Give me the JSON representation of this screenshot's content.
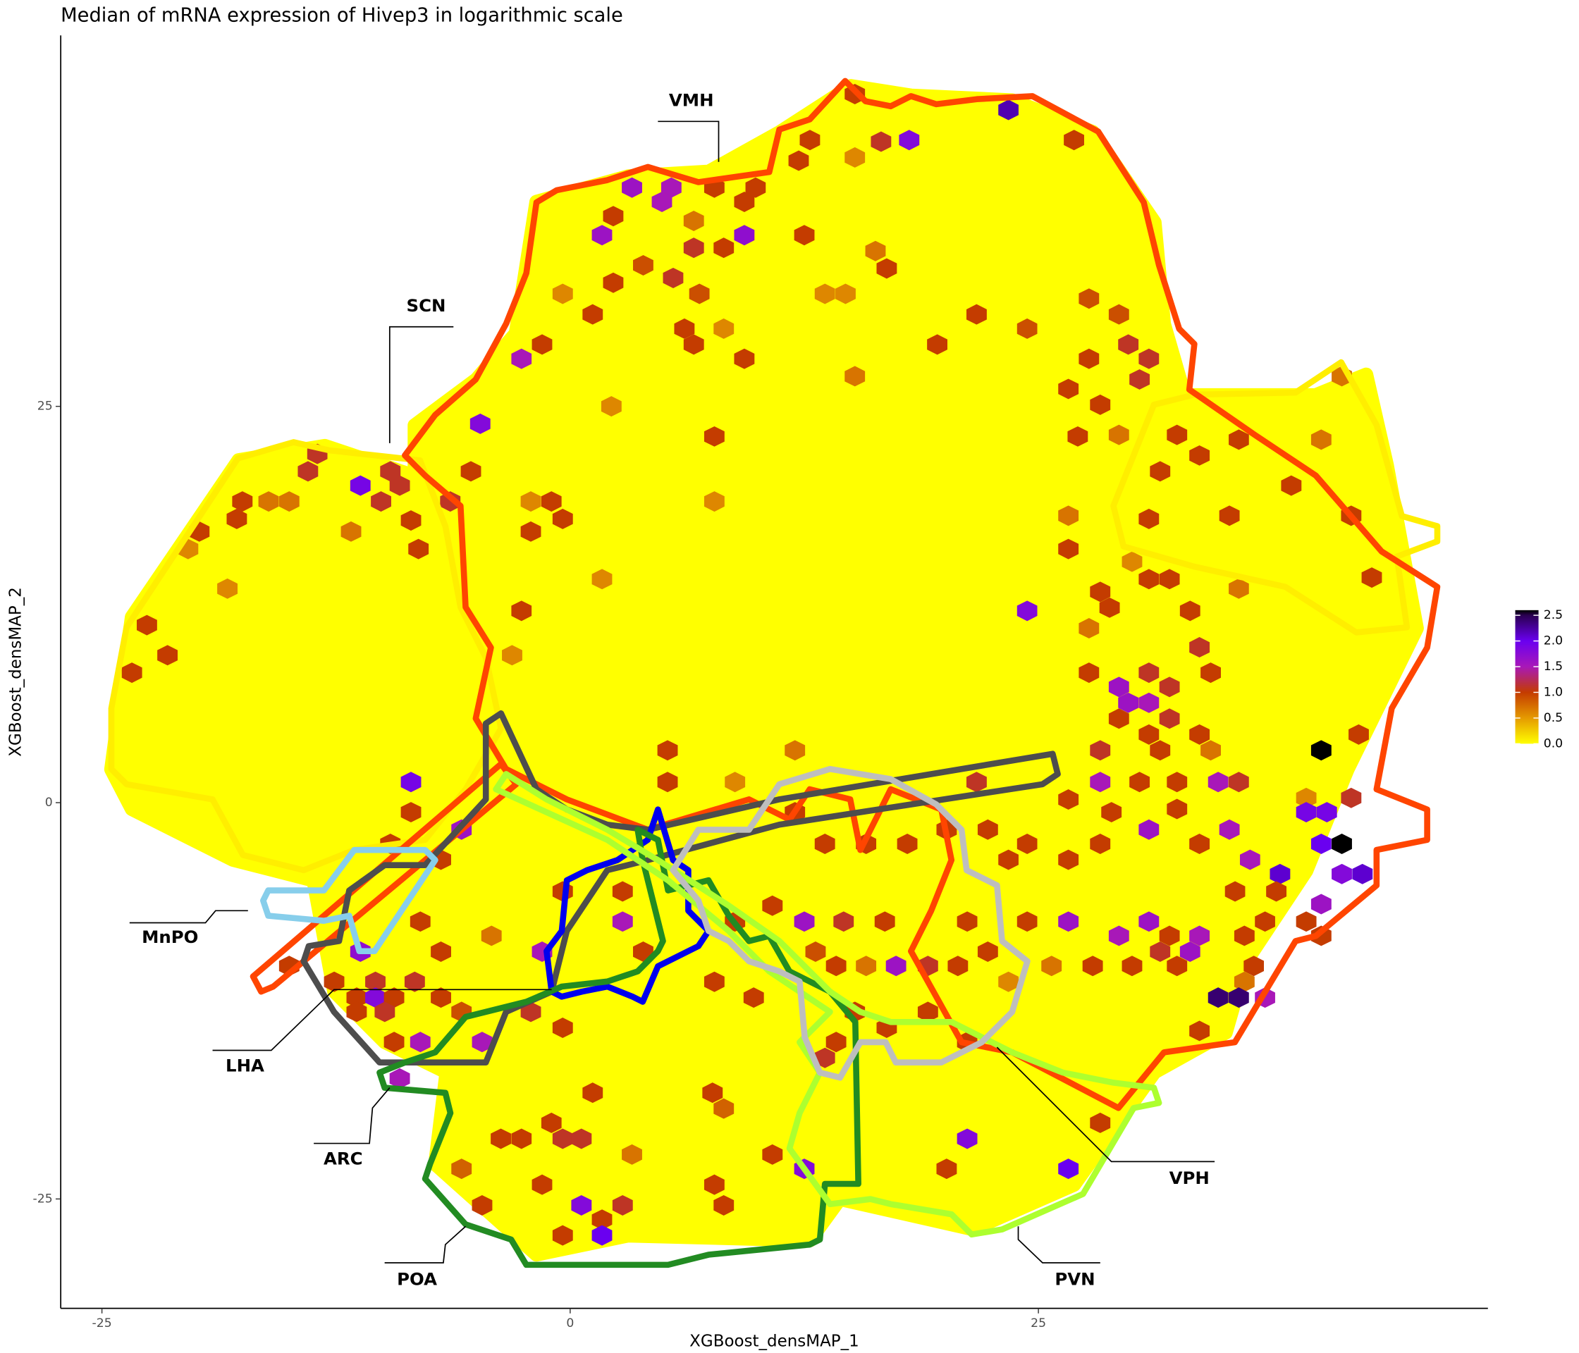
{
  "chart_data": {
    "type": "hexbin",
    "title": "Median of mRNA expression of Hivep3 in logarithmic scale",
    "x_label": "XGBoost_densMAP_1",
    "y_label": "XGBoost_densMAP_2",
    "xlim": [
      -27.2,
      49.0
    ],
    "xticks": [
      -25,
      0,
      25
    ],
    "ylim": [
      -31.9,
      48.4
    ],
    "yticks": [
      -25,
      0,
      25
    ],
    "clim": [
      0,
      2.6
    ],
    "colorbar_ticks": [
      {
        "value": 0,
        "label": "0.0"
      },
      0.5,
      {
        "value": 1,
        "label": "1.0"
      },
      1.5,
      {
        "value": 2,
        "label": "2.0"
      },
      2.5
    ],
    "colorscale": [
      [
        0,
        "#ffff00"
      ],
      [
        0.5,
        "#e59a00"
      ],
      [
        1.0,
        "#c43c00"
      ],
      [
        1.5,
        "#a818b8"
      ],
      [
        2.0,
        "#6a00f0"
      ],
      [
        2.5,
        "#2a0050"
      ],
      [
        2.6,
        "#000000"
      ]
    ],
    "region_labels": [
      "VMH",
      "SCN",
      "MnPO",
      "LHA",
      "ARC",
      "POA",
      "PVN",
      "VPH"
    ],
    "hull": {
      "x": [
        -24.5,
        -23.4,
        -17.7,
        -13.1,
        -8.3,
        -8.3,
        -5.0,
        -2.9,
        -1.8,
        3.1,
        7.4,
        11.2,
        15.0,
        18.2,
        23.6,
        27.9,
        31.2,
        31.7,
        32.8,
        39.8,
        42.5,
        43.6,
        45.2,
        41.5,
        39.3,
        36.1,
        35.0,
        31.2,
        26.9,
        21.5,
        14.4,
        12.8,
        3.1,
        -1.8,
        -7.2,
        -6.6,
        -9.9,
        -12.6,
        -13.7,
        -18.0,
        -23.4
      ],
      "y": [
        2.1,
        11.7,
        21.6,
        22.5,
        20.6,
        23.8,
        26.7,
        29.6,
        37.9,
        39.5,
        39.8,
        42.3,
        45.2,
        44.6,
        44.3,
        42.3,
        36.6,
        30.2,
        25.7,
        25.7,
        27.0,
        21.3,
        11.0,
        2.1,
        -4.3,
        -10.0,
        -14.5,
        -17.0,
        -24.1,
        -26.9,
        -25.0,
        -27.6,
        -27.3,
        -28.5,
        -22.8,
        -17.0,
        -15.1,
        -11.9,
        -4.9,
        -3.6,
        -0.4
      ]
    },
    "hexbins": [
      [
        15.2,
        44.7,
        1.0
      ],
      [
        23.4,
        43.7,
        2.2
      ],
      [
        12.8,
        41.8,
        1.0
      ],
      [
        16.6,
        41.7,
        1.1
      ],
      [
        18.1,
        41.8,
        1.8
      ],
      [
        26.9,
        41.8,
        1.0
      ],
      [
        12.2,
        40.5,
        1.0
      ],
      [
        15.2,
        40.7,
        0.6
      ],
      [
        3.3,
        38.8,
        1.6
      ],
      [
        5.4,
        38.8,
        1.5
      ],
      [
        7.7,
        38.8,
        1.0
      ],
      [
        9.9,
        38.8,
        1.0
      ],
      [
        4.9,
        37.9,
        1.5
      ],
      [
        2.3,
        37.0,
        1.0
      ],
      [
        9.3,
        37.9,
        1.0
      ],
      [
        1.7,
        35.8,
        1.6
      ],
      [
        6.6,
        36.7,
        0.7
      ],
      [
        6.6,
        35.0,
        1.1
      ],
      [
        8.2,
        35.0,
        1.0
      ],
      [
        9.3,
        35.8,
        1.7
      ],
      [
        12.5,
        35.8,
        1.0
      ],
      [
        3.9,
        33.9,
        0.9
      ],
      [
        5.5,
        33.1,
        1.1
      ],
      [
        6.9,
        32.1,
        0.9
      ],
      [
        2.3,
        32.8,
        1.0
      ],
      [
        -0.4,
        32.1,
        0.6
      ],
      [
        16.3,
        34.8,
        0.7
      ],
      [
        16.9,
        33.7,
        1.0
      ],
      [
        13.6,
        32.1,
        0.6
      ],
      [
        14.7,
        32.1,
        0.6
      ],
      [
        21.7,
        30.8,
        1.0
      ],
      [
        6.1,
        29.9,
        1.0
      ],
      [
        8.2,
        29.9,
        0.6
      ],
      [
        6.6,
        28.9,
        1.0
      ],
      [
        1.2,
        30.8,
        1.0
      ],
      [
        -1.5,
        28.9,
        1.0
      ],
      [
        -2.6,
        28.0,
        1.5
      ],
      [
        9.3,
        28.0,
        1.0
      ],
      [
        19.6,
        28.9,
        1.0
      ],
      [
        15.2,
        26.9,
        0.7
      ],
      [
        24.4,
        29.9,
        0.9
      ],
      [
        27.7,
        31.8,
        0.9
      ],
      [
        29.3,
        30.8,
        0.9
      ],
      [
        29.8,
        28.9,
        1.1
      ],
      [
        30.9,
        28.0,
        1.1
      ],
      [
        30.4,
        26.7,
        1.1
      ],
      [
        27.7,
        28.0,
        1.0
      ],
      [
        26.6,
        26.1,
        1.0
      ],
      [
        28.3,
        25.1,
        1.0
      ],
      [
        41.2,
        26.9,
        0.7
      ],
      [
        -4.8,
        23.9,
        1.8
      ],
      [
        2.2,
        25.0,
        0.6
      ],
      [
        7.7,
        23.1,
        1.0
      ],
      [
        27.1,
        23.1,
        1.0
      ],
      [
        29.3,
        23.2,
        0.7
      ],
      [
        32.4,
        23.2,
        1.0
      ],
      [
        35.7,
        22.9,
        1.0
      ],
      [
        40.1,
        22.9,
        0.7
      ],
      [
        31.5,
        20.9,
        1.0
      ],
      [
        33.6,
        21.9,
        1.0
      ],
      [
        7.7,
        19.0,
        0.6
      ],
      [
        -2.1,
        19.0,
        0.6
      ],
      [
        -1.0,
        19.0,
        1.0
      ],
      [
        38.5,
        20.0,
        1.0
      ],
      [
        35.2,
        18.1,
        1.0
      ],
      [
        30.9,
        17.9,
        1.0
      ],
      [
        26.6,
        18.1,
        0.7
      ],
      [
        41.7,
        18.1,
        1.0
      ],
      [
        -8.5,
        17.8,
        1.0
      ],
      [
        -10.1,
        19.0,
        1.1
      ],
      [
        -9.1,
        20.0,
        1.1
      ],
      [
        -14.0,
        20.9,
        1.1
      ],
      [
        -11.2,
        20.0,
        1.9
      ],
      [
        -13.5,
        22.0,
        1.1
      ],
      [
        -9.6,
        20.9,
        1.1
      ],
      [
        -17.5,
        19.0,
        1.0
      ],
      [
        -16.1,
        19.0,
        0.7
      ],
      [
        -15.0,
        19.0,
        0.7
      ],
      [
        -17.8,
        17.9,
        1.0
      ],
      [
        -19.8,
        17.1,
        1.0
      ],
      [
        -11.7,
        17.1,
        0.7
      ],
      [
        -8.1,
        16.0,
        1.0
      ],
      [
        -2.1,
        17.1,
        1.0
      ],
      [
        -0.4,
        17.9,
        1.0
      ],
      [
        -5.3,
        20.9,
        1.0
      ],
      [
        -6.4,
        19.0,
        1.1
      ],
      [
        -20.4,
        16.0,
        0.6
      ],
      [
        -18.3,
        13.5,
        0.6
      ],
      [
        1.7,
        14.1,
        0.6
      ],
      [
        26.6,
        16.0,
        1.0
      ],
      [
        30.0,
        15.2,
        0.6
      ],
      [
        30.9,
        14.1,
        1.0
      ],
      [
        32.0,
        14.1,
        1.0
      ],
      [
        35.7,
        13.5,
        0.7
      ],
      [
        42.8,
        14.2,
        1.0
      ],
      [
        28.3,
        13.3,
        1.0
      ],
      [
        28.8,
        12.3,
        1.0
      ],
      [
        24.4,
        12.1,
        1.8
      ],
      [
        -2.6,
        12.1,
        1.0
      ],
      [
        33.1,
        12.1,
        1.0
      ],
      [
        27.7,
        11.0,
        0.7
      ],
      [
        -22.6,
        11.2,
        1.0
      ],
      [
        -21.5,
        9.3,
        1.0
      ],
      [
        -23.4,
        8.2,
        1.0
      ],
      [
        -3.1,
        9.3,
        0.6
      ],
      [
        30.9,
        8.2,
        1.1
      ],
      [
        29.3,
        7.3,
        1.6
      ],
      [
        32.0,
        7.3,
        1.1
      ],
      [
        34.2,
        8.2,
        1.0
      ],
      [
        27.7,
        8.2,
        1.0
      ],
      [
        33.6,
        9.8,
        1.1
      ],
      [
        29.8,
        6.3,
        1.6
      ],
      [
        30.9,
        6.3,
        1.5
      ],
      [
        29.3,
        5.3,
        1.0
      ],
      [
        32.0,
        5.3,
        1.1
      ],
      [
        30.9,
        4.3,
        1.0
      ],
      [
        33.6,
        4.3,
        1.0
      ],
      [
        42.1,
        4.3,
        1.0
      ],
      [
        40.1,
        3.3,
        2.6
      ],
      [
        28.3,
        3.3,
        1.1
      ],
      [
        31.5,
        3.3,
        1.0
      ],
      [
        34.2,
        3.3,
        0.7
      ],
      [
        5.2,
        3.3,
        1.0
      ],
      [
        12.0,
        3.3,
        0.7
      ],
      [
        -8.5,
        1.3,
        1.9
      ],
      [
        5.2,
        1.3,
        1.0
      ],
      [
        8.8,
        1.3,
        0.6
      ],
      [
        21.7,
        1.3,
        1.1
      ],
      [
        28.3,
        1.3,
        1.5
      ],
      [
        30.4,
        1.3,
        1.0
      ],
      [
        32.4,
        1.3,
        1.0
      ],
      [
        34.6,
        1.3,
        1.5
      ],
      [
        35.7,
        1.3,
        1.1
      ],
      [
        39.3,
        0.3,
        0.6
      ],
      [
        41.7,
        0.3,
        1.1
      ],
      [
        39.3,
        -0.6,
        1.9
      ],
      [
        40.4,
        -0.6,
        1.9
      ],
      [
        26.6,
        0.2,
        1.0
      ],
      [
        28.9,
        -0.6,
        1.0
      ],
      [
        -8.5,
        -0.6,
        1.0
      ],
      [
        41.2,
        -2.6,
        2.6
      ],
      [
        40.1,
        -2.6,
        2.0
      ],
      [
        42.3,
        -4.5,
        2.1
      ],
      [
        41.2,
        -4.5,
        1.8
      ],
      [
        37.9,
        -4.5,
        2.1
      ],
      [
        36.3,
        -3.6,
        1.5
      ],
      [
        35.2,
        -1.7,
        1.5
      ],
      [
        32.4,
        -0.4,
        1.0
      ],
      [
        33.6,
        -2.6,
        1.0
      ],
      [
        30.9,
        -1.7,
        1.6
      ],
      [
        28.3,
        -2.6,
        1.0
      ],
      [
        26.6,
        -3.6,
        1.0
      ],
      [
        24.4,
        -2.6,
        1.0
      ],
      [
        23.4,
        -3.6,
        1.0
      ],
      [
        22.3,
        -1.7,
        1.0
      ],
      [
        20.1,
        -1.7,
        1.0
      ],
      [
        18.0,
        -2.6,
        1.0
      ],
      [
        15.8,
        -2.6,
        1.0
      ],
      [
        13.6,
        -2.6,
        1.0
      ],
      [
        12.0,
        -0.6,
        1.0
      ],
      [
        -5.8,
        -1.7,
        1.6
      ],
      [
        -9.6,
        -2.6,
        1.0
      ],
      [
        2.8,
        -5.6,
        1.0
      ],
      [
        -0.4,
        -5.6,
        1.0
      ],
      [
        -6.9,
        -3.6,
        1.0
      ],
      [
        40.1,
        -6.4,
        1.6
      ],
      [
        40.1,
        -8.4,
        1.0
      ],
      [
        39.3,
        -7.5,
        1.0
      ],
      [
        37.1,
        -7.5,
        1.0
      ],
      [
        36.0,
        -8.4,
        1.0
      ],
      [
        37.7,
        -5.6,
        1.0
      ],
      [
        35.5,
        -5.6,
        1.0
      ],
      [
        33.6,
        -8.4,
        1.5
      ],
      [
        32.0,
        -8.4,
        1.0
      ],
      [
        30.9,
        -7.5,
        1.6
      ],
      [
        29.3,
        -8.4,
        1.5
      ],
      [
        31.5,
        -9.4,
        1.1
      ],
      [
        33.1,
        -9.4,
        1.6
      ],
      [
        26.6,
        -7.5,
        1.6
      ],
      [
        24.4,
        -7.5,
        1.0
      ],
      [
        21.2,
        -7.5,
        1.0
      ],
      [
        16.8,
        -7.5,
        1.0
      ],
      [
        14.6,
        -7.5,
        1.1
      ],
      [
        12.5,
        -7.5,
        1.6
      ],
      [
        10.8,
        -6.5,
        1.0
      ],
      [
        8.8,
        -7.5,
        1.0
      ],
      [
        2.8,
        -7.5,
        1.5
      ],
      [
        -8.0,
        -7.5,
        1.0
      ],
      [
        -4.2,
        -8.4,
        0.7
      ],
      [
        3.9,
        -9.4,
        1.0
      ],
      [
        -6.9,
        -9.4,
        1.0
      ],
      [
        -1.5,
        -9.4,
        1.5
      ],
      [
        36.5,
        -10.3,
        1.0
      ],
      [
        36.0,
        -11.3,
        0.7
      ],
      [
        37.1,
        -12.3,
        1.5
      ],
      [
        34.6,
        -12.3,
        2.4
      ],
      [
        35.7,
        -12.3,
        2.4
      ],
      [
        33.6,
        -14.4,
        1.0
      ],
      [
        32.4,
        -10.3,
        1.0
      ],
      [
        30.0,
        -10.3,
        1.0
      ],
      [
        27.9,
        -10.3,
        1.0
      ],
      [
        25.7,
        -10.3,
        0.7
      ],
      [
        22.3,
        -9.4,
        1.0
      ],
      [
        20.7,
        -10.3,
        1.0
      ],
      [
        19.1,
        -10.3,
        1.1
      ],
      [
        17.4,
        -10.3,
        1.6
      ],
      [
        15.8,
        -10.3,
        0.7
      ],
      [
        14.2,
        -10.3,
        1.0
      ],
      [
        13.1,
        -9.4,
        0.9
      ],
      [
        7.7,
        -11.3,
        1.0
      ],
      [
        9.8,
        -12.3,
        1.0
      ],
      [
        23.4,
        -11.3,
        0.6
      ],
      [
        -15.0,
        -10.3,
        1.0
      ],
      [
        -11.2,
        -9.4,
        1.7
      ],
      [
        -12.6,
        -11.3,
        1.0
      ],
      [
        -10.4,
        -11.3,
        1.1
      ],
      [
        -8.3,
        -11.3,
        1.1
      ],
      [
        -11.4,
        -12.3,
        1.0
      ],
      [
        -10.4,
        -12.3,
        1.8
      ],
      [
        -9.4,
        -12.3,
        1.0
      ],
      [
        -6.9,
        -12.3,
        1.0
      ],
      [
        -9.9,
        -13.2,
        1.1
      ],
      [
        -11.4,
        -13.2,
        1.0
      ],
      [
        -2.1,
        -13.2,
        1.1
      ],
      [
        -5.8,
        -13.2,
        0.9
      ],
      [
        -9.4,
        -15.1,
        1.0
      ],
      [
        -8.0,
        -15.1,
        1.5
      ],
      [
        -4.7,
        -15.1,
        1.5
      ],
      [
        -0.4,
        -14.2,
        1.0
      ],
      [
        19.1,
        -13.2,
        1.0
      ],
      [
        16.9,
        -14.2,
        1.0
      ],
      [
        15.2,
        -13.2,
        1.0
      ],
      [
        14.2,
        -15.1,
        1.0
      ],
      [
        13.6,
        -16.1,
        1.1
      ],
      [
        21.2,
        -15.1,
        1.0
      ],
      [
        -9.1,
        -17.4,
        1.5
      ],
      [
        1.2,
        -18.3,
        1.0
      ],
      [
        7.6,
        -18.3,
        1.0
      ],
      [
        8.2,
        -19.3,
        0.8
      ],
      [
        28.3,
        -20.2,
        1.0
      ],
      [
        -1.0,
        -20.2,
        1.0
      ],
      [
        -3.7,
        -21.2,
        1.0
      ],
      [
        -2.6,
        -21.2,
        1.0
      ],
      [
        -0.4,
        -21.2,
        1.1
      ],
      [
        0.6,
        -21.2,
        1.1
      ],
      [
        3.3,
        -22.2,
        0.7
      ],
      [
        21.2,
        -21.2,
        1.8
      ],
      [
        10.8,
        -22.2,
        1.0
      ],
      [
        12.5,
        -23.1,
        1.8
      ],
      [
        26.6,
        -23.1,
        2.0
      ],
      [
        20.1,
        -23.1,
        1.0
      ],
      [
        -4.7,
        -25.4,
        1.0
      ],
      [
        -1.5,
        -24.1,
        1.0
      ],
      [
        0.6,
        -25.4,
        1.8
      ],
      [
        1.7,
        -26.3,
        1.0
      ],
      [
        2.8,
        -25.4,
        1.1
      ],
      [
        -0.4,
        -27.3,
        1.0
      ],
      [
        1.7,
        -27.3,
        2.0
      ],
      [
        8.2,
        -25.4,
        1.0
      ],
      [
        7.7,
        -24.1,
        1.0
      ],
      [
        -5.8,
        -23.1,
        0.8
      ]
    ]
  }
}
